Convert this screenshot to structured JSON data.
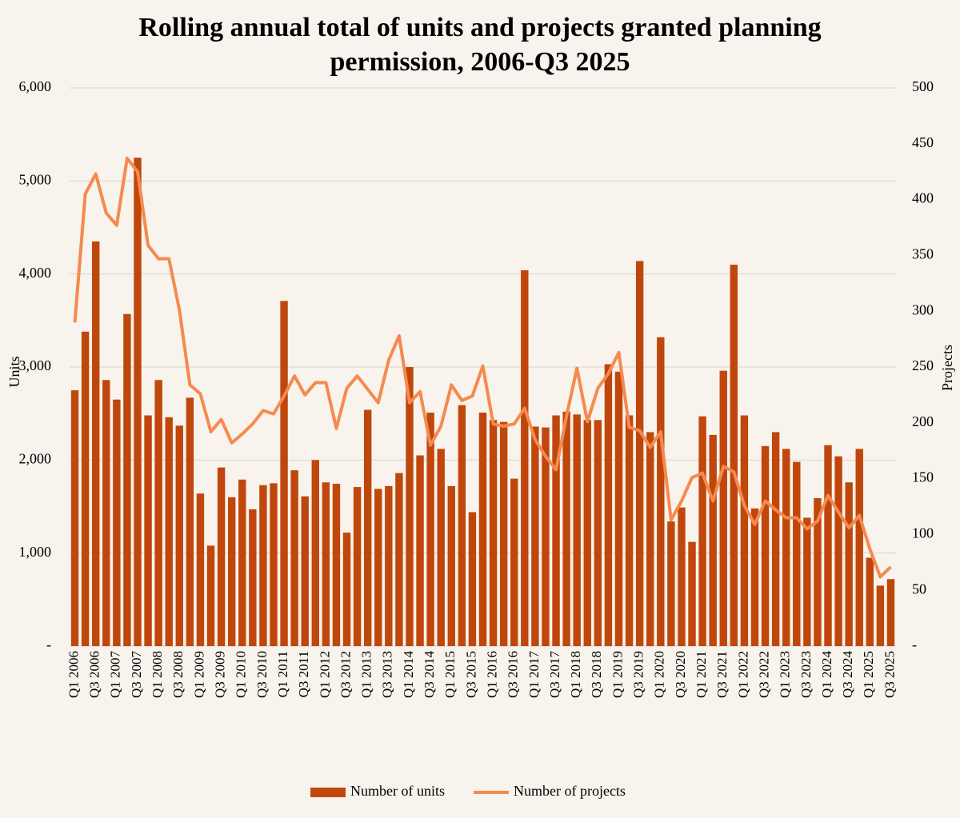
{
  "chart_data": {
    "type": "bar",
    "title": [
      "Rolling annual total of units and projects granted planning",
      "permission, 2006-Q3 2025"
    ],
    "y_label": "Units",
    "y2_label": "Projects",
    "categories": [
      "Q1 2006",
      null,
      "Q3 2006",
      null,
      "Q1 2007",
      null,
      "Q3 2007",
      null,
      "Q1 2008",
      null,
      "Q3 2008",
      null,
      "Q1 2009",
      null,
      "Q3 2009",
      null,
      "Q1 2010",
      null,
      "Q3 2010",
      null,
      "Q1 2011",
      null,
      "Q3 2011",
      null,
      "Q1 2012",
      null,
      "Q3 2012",
      null,
      "Q1 2013",
      null,
      "Q3 2013",
      null,
      "Q1 2014",
      null,
      "Q3 2014",
      null,
      "Q1 2015",
      null,
      "Q3 2015",
      null,
      "Q1 2016",
      null,
      "Q3 2016",
      null,
      "Q1 2017",
      null,
      "Q3 2017",
      null,
      "Q1 2018",
      null,
      "Q3 2018",
      null,
      "Q1 2019",
      null,
      "Q3 2019",
      null,
      "Q1 2020",
      null,
      "Q3 2020",
      null,
      "Q1 2021",
      null,
      "Q3 2021",
      null,
      "Q1 2022",
      null,
      "Q3 2022",
      null,
      "Q1 2023",
      null,
      "Q3 2023",
      null,
      "Q1 2024",
      null,
      "Q3 2024",
      null,
      "Q1 2025",
      null,
      "Q3 2025"
    ],
    "series": [
      {
        "name": "Number of units",
        "type": "bar",
        "color": "#c0470c",
        "axis": "y",
        "values": [
          2750,
          3380,
          4350,
          2860,
          2650,
          3570,
          5250,
          2480,
          2860,
          2460,
          2370,
          2670,
          1640,
          1080,
          1920,
          1600,
          1790,
          1470,
          1730,
          1750,
          3710,
          1890,
          1610,
          2000,
          1760,
          1745,
          1220,
          1710,
          2540,
          1690,
          1720,
          1860,
          3000,
          2050,
          2510,
          2120,
          1720,
          2590,
          1440,
          2510,
          2430,
          2410,
          1800,
          4040,
          2360,
          2350,
          2480,
          2520,
          2490,
          2430,
          2430,
          3030,
          2950,
          2480,
          4140,
          2300,
          3320,
          1340,
          1490,
          1120,
          2470,
          2270,
          2960,
          4100,
          2480,
          1480,
          2150,
          2300,
          2120,
          1980,
          1380,
          1590,
          2160,
          2040,
          1760,
          2120,
          950,
          650,
          720
        ]
      },
      {
        "name": "Number of projects",
        "type": "line",
        "color": "#f58a4f",
        "axis": "y2",
        "values": [
          290,
          405,
          423,
          388,
          377,
          437,
          425,
          359,
          347,
          347,
          301,
          234,
          226,
          192,
          203,
          182,
          190,
          199,
          211,
          208,
          224,
          242,
          225,
          236,
          236,
          195,
          231,
          242,
          230,
          218,
          256,
          278,
          218,
          228,
          180,
          197,
          234,
          220,
          224,
          251,
          199,
          197,
          199,
          213,
          185,
          170,
          158,
          206,
          249,
          201,
          231,
          244,
          263,
          196,
          193,
          178,
          192,
          113,
          130,
          151,
          155,
          130,
          161,
          156,
          126,
          109,
          130,
          122,
          115,
          115,
          105,
          112,
          135,
          120,
          106,
          117,
          87,
          62,
          71
        ]
      }
    ],
    "ylim": [
      0,
      6000
    ],
    "yticks": [
      {
        "value": 0,
        "label": "-"
      },
      {
        "value": 1000,
        "label": "1,000"
      },
      {
        "value": 2000,
        "label": "2,000"
      },
      {
        "value": 3000,
        "label": "3,000"
      },
      {
        "value": 4000,
        "label": "4,000"
      },
      {
        "value": 5000,
        "label": "5,000"
      },
      {
        "value": 6000,
        "label": "6,000"
      }
    ],
    "y2lim": [
      0,
      500
    ],
    "y2ticks": [
      {
        "value": 0,
        "label": "-"
      },
      50,
      100,
      150,
      200,
      250,
      300,
      350,
      400,
      450,
      500
    ],
    "grid": true,
    "legend": "bottom"
  }
}
